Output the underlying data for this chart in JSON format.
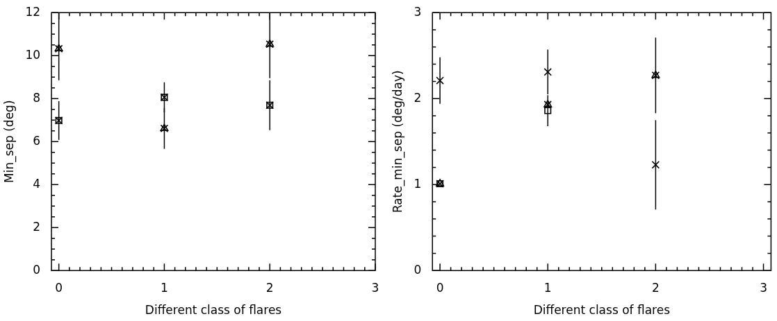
{
  "chart_data": [
    {
      "type": "scatter",
      "xlabel": "Different class of flares",
      "ylabel": "Min_sep (deg)",
      "x": [
        0,
        1,
        2
      ],
      "xlim": [
        -0.07,
        3.0
      ],
      "ylim": [
        0,
        12
      ],
      "xticks": [
        0,
        {
          "value": 0.1,
          "label": null
        },
        {
          "value": 0.2,
          "label": null
        },
        {
          "value": 0.3,
          "label": null
        },
        {
          "value": 0.4,
          "label": null
        },
        {
          "value": 0.5,
          "label": null
        },
        {
          "value": 0.6,
          "label": null
        },
        {
          "value": 0.7,
          "label": null
        },
        {
          "value": 0.8,
          "label": null
        },
        {
          "value": 0.9,
          "label": null
        },
        1,
        {
          "value": 1.1,
          "label": null
        },
        {
          "value": 1.2,
          "label": null
        },
        {
          "value": 1.3,
          "label": null
        },
        {
          "value": 1.4,
          "label": null
        },
        {
          "value": 1.5,
          "label": null
        },
        {
          "value": 1.6,
          "label": null
        },
        {
          "value": 1.7,
          "label": null
        },
        {
          "value": 1.8,
          "label": null
        },
        {
          "value": 1.9,
          "label": null
        },
        2,
        {
          "value": 2.1,
          "label": null
        },
        {
          "value": 2.2,
          "label": null
        },
        {
          "value": 2.3,
          "label": null
        },
        {
          "value": 2.4,
          "label": null
        },
        {
          "value": 2.5,
          "label": null
        },
        {
          "value": 2.6,
          "label": null
        },
        {
          "value": 2.7,
          "label": null
        },
        {
          "value": 2.8,
          "label": null
        },
        {
          "value": 2.9,
          "label": null
        },
        3
      ],
      "yticks": [
        0,
        {
          "value": 0.5,
          "label": null
        },
        {
          "value": 1,
          "label": null
        },
        {
          "value": 1.5,
          "label": null
        },
        2,
        {
          "value": 2.5,
          "label": null
        },
        {
          "value": 3,
          "label": null
        },
        {
          "value": 3.5,
          "label": null
        },
        4,
        {
          "value": 4.5,
          "label": null
        },
        {
          "value": 5,
          "label": null
        },
        {
          "value": 5.5,
          "label": null
        },
        6,
        {
          "value": 6.5,
          "label": null
        },
        {
          "value": 7,
          "label": null
        },
        {
          "value": 7.5,
          "label": null
        },
        8,
        {
          "value": 8.5,
          "label": null
        },
        {
          "value": 9,
          "label": null
        },
        {
          "value": 9.5,
          "label": null
        },
        10,
        {
          "value": 10.5,
          "label": null
        },
        {
          "value": 11,
          "label": null
        },
        {
          "value": 11.5,
          "label": null
        },
        12
      ],
      "series": [
        {
          "color": "#000000",
          "marker": "cross",
          "x": [
            0,
            0,
            1,
            1,
            2,
            2
          ],
          "values": [
            6.98,
            10.32,
            8.06,
            6.61,
            7.69,
            10.53
          ]
        },
        {
          "color": "#000000",
          "marker": "square",
          "values": [
            6.98,
            8.06,
            7.69
          ],
          "errors": [
            0.9,
            0.7,
            1.16
          ]
        },
        {
          "color": "#000000",
          "marker": "triangle",
          "values": [
            10.32,
            6.61,
            10.53
          ],
          "errors": [
            [
              8.85,
              12
            ],
            0.95,
            [
              8.95,
              12
            ]
          ]
        }
      ]
    },
    {
      "type": "scatter",
      "xlabel": "Different class of flares",
      "ylabel": "Rate_min_sep (deg/day)",
      "x": [
        0,
        1,
        2
      ],
      "xlim": [
        -0.07,
        3.07
      ],
      "ylim": [
        0,
        3
      ],
      "xticks": [
        0,
        {
          "value": 0.1,
          "label": null
        },
        {
          "value": 0.2,
          "label": null
        },
        {
          "value": 0.3,
          "label": null
        },
        {
          "value": 0.4,
          "label": null
        },
        {
          "value": 0.5,
          "label": null
        },
        {
          "value": 0.6,
          "label": null
        },
        {
          "value": 0.7,
          "label": null
        },
        {
          "value": 0.8,
          "label": null
        },
        {
          "value": 0.9,
          "label": null
        },
        1,
        {
          "value": 1.1,
          "label": null
        },
        {
          "value": 1.2,
          "label": null
        },
        {
          "value": 1.3,
          "label": null
        },
        {
          "value": 1.4,
          "label": null
        },
        {
          "value": 1.5,
          "label": null
        },
        {
          "value": 1.6,
          "label": null
        },
        {
          "value": 1.7,
          "label": null
        },
        {
          "value": 1.8,
          "label": null
        },
        {
          "value": 1.9,
          "label": null
        },
        2,
        {
          "value": 2.1,
          "label": null
        },
        {
          "value": 2.2,
          "label": null
        },
        {
          "value": 2.3,
          "label": null
        },
        {
          "value": 2.4,
          "label": null
        },
        {
          "value": 2.5,
          "label": null
        },
        {
          "value": 2.6,
          "label": null
        },
        {
          "value": 2.7,
          "label": null
        },
        {
          "value": 2.8,
          "label": null
        },
        {
          "value": 2.9,
          "label": null
        },
        3
      ],
      "yticks": [
        0,
        {
          "value": 0.2,
          "label": null
        },
        {
          "value": 0.4,
          "label": null
        },
        {
          "value": 0.6,
          "label": null
        },
        {
          "value": 0.8,
          "label": null
        },
        1,
        {
          "value": 1.2,
          "label": null
        },
        {
          "value": 1.4,
          "label": null
        },
        {
          "value": 1.6,
          "label": null
        },
        {
          "value": 1.8,
          "label": null
        },
        2,
        {
          "value": 2.2,
          "label": null
        },
        {
          "value": 2.4,
          "label": null
        },
        {
          "value": 2.6,
          "label": null
        },
        {
          "value": 2.8,
          "label": null
        },
        3
      ],
      "series": [
        {
          "color": "#000000",
          "marker": "cross",
          "x": [
            0,
            0,
            1,
            1,
            2,
            2
          ],
          "values": [
            2.21,
            1.01,
            2.31,
            1.93,
            2.27,
            1.23
          ],
          "errors": [
            0.27,
            null,
            0.26,
            null,
            null,
            0.52
          ]
        },
        {
          "color": "#000000",
          "marker": "triangle",
          "values": [
            1.01,
            1.93,
            2.27
          ],
          "errors": [
            null,
            null,
            0.44
          ]
        },
        {
          "color": "#000000",
          "marker": "square",
          "values": [
            1.01,
            1.86,
            null
          ],
          "errors": [
            null,
            0.18,
            null
          ]
        }
      ]
    }
  ]
}
